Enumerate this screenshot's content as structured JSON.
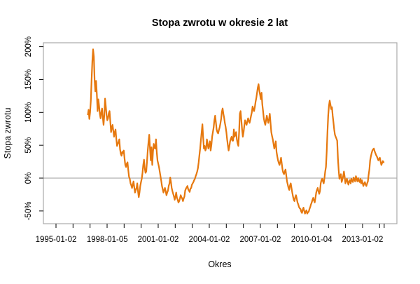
{
  "title": "Stopa zwrotu w okresie 2 lat",
  "chart_data": {
    "type": "line",
    "title": "Stopa zwrotu w okresie 2 lat",
    "xlabel": "Okres",
    "ylabel": "Stopa zwrotu",
    "legend": null,
    "grid": false,
    "series_color": "#E6780E",
    "box_color": "#A9A9A9",
    "zero_line_color": "#B0B0B0",
    "tick_color": "#000000",
    "ylim_pct": [
      -69,
      206
    ],
    "y_ticks": [
      {
        "label": "-50%",
        "value": -50
      },
      {
        "label": "0%",
        "value": 0
      },
      {
        "label": "50%",
        "value": 50
      },
      {
        "label": "100%",
        "value": 100
      },
      {
        "label": "150%",
        "value": 150
      },
      {
        "label": "200%",
        "value": 200
      }
    ],
    "x_major_ticks": [
      {
        "label": "1995-01-02",
        "year": 1995.0
      },
      {
        "label": "1998-01-05",
        "year": 1998.01
      },
      {
        "label": "2001-01-02",
        "year": 2001.0
      },
      {
        "label": "2004-01-02",
        "year": 2004.0
      },
      {
        "label": "2007-01-02",
        "year": 2007.0
      },
      {
        "label": "2010-01-04",
        "year": 2010.01
      },
      {
        "label": "2013-01-02",
        "year": 2013.0
      }
    ],
    "x_minor_tick_years": [
      1995,
      1996,
      1997,
      1998,
      1999,
      2000,
      2001,
      2002,
      2003,
      2004,
      2005,
      2006,
      2007,
      2008,
      2009,
      2010,
      2011,
      2012,
      2013,
      2014,
      2014.27
    ],
    "series": {
      "name": "stopa-zwrotu-2-lata",
      "x_start_year": 1996.87,
      "x_end_year": 2014.28,
      "unit": "percent",
      "values": [
        96,
        104,
        90,
        100,
        118,
        150,
        178,
        196,
        185,
        150,
        132,
        148,
        128,
        102,
        120,
        110,
        98,
        91,
        100,
        106,
        92,
        81,
        96,
        121,
        109,
        96,
        88,
        91,
        99,
        102,
        86,
        70,
        77,
        81,
        72,
        63,
        70,
        74,
        60,
        49,
        52,
        55,
        59,
        44,
        37,
        34,
        40,
        38,
        42,
        30,
        20,
        17,
        22,
        24,
        12,
        2,
        -1,
        -8,
        -11,
        -15,
        -10,
        -5,
        -14,
        -22,
        -18,
        -15,
        -8,
        -20,
        -29,
        -22,
        -12,
        -6,
        -1,
        8,
        20,
        28,
        15,
        8,
        10,
        25,
        42,
        55,
        66,
        45,
        27,
        47,
        20,
        40,
        52,
        46,
        45,
        59,
        40,
        27,
        22,
        17,
        10,
        3,
        -4,
        -12,
        -17,
        -22,
        -18,
        -15,
        -20,
        -26,
        -22,
        -19,
        -12,
        -8,
        1,
        -6,
        -15,
        -20,
        -24,
        -28,
        -33,
        -28,
        -22,
        -30,
        -33,
        -37,
        -35,
        -31,
        -26,
        -29,
        -31,
        -35,
        -31,
        -28,
        -19,
        -16,
        -14,
        -12,
        -17,
        -19,
        -21,
        -16,
        -15,
        -10,
        -8,
        -6,
        -3,
        -1,
        3,
        6,
        10,
        15,
        24,
        35,
        45,
        58,
        70,
        82,
        62,
        45,
        49,
        42,
        45,
        59,
        52,
        45,
        50,
        56,
        42,
        50,
        63,
        70,
        77,
        88,
        95,
        85,
        74,
        70,
        68,
        73,
        77,
        83,
        90,
        101,
        106,
        98,
        92,
        84,
        78,
        70,
        59,
        50,
        42,
        48,
        56,
        60,
        63,
        57,
        57,
        74,
        63,
        67,
        70,
        59,
        53,
        49,
        70,
        98,
        102,
        88,
        74,
        63,
        70,
        80,
        88,
        84,
        81,
        86,
        91,
        87,
        84,
        89,
        95,
        100,
        109,
        105,
        102,
        108,
        116,
        122,
        130,
        138,
        143,
        133,
        127,
        120,
        130,
        112,
        102,
        91,
        85,
        81,
        88,
        95,
        89,
        84,
        90,
        98,
        84,
        70,
        64,
        59,
        52,
        45,
        50,
        56,
        40,
        33,
        27,
        23,
        20,
        25,
        31,
        22,
        13,
        8,
        6,
        10,
        13,
        4,
        -5,
        -10,
        -15,
        -18,
        -11,
        -8,
        -15,
        -22,
        -28,
        -33,
        -35,
        -29,
        -26,
        -31,
        -37,
        -40,
        -44,
        -46,
        -47,
        -51,
        -53,
        -48,
        -45,
        -50,
        -54,
        -51,
        -49,
        -54,
        -52,
        -51,
        -47,
        -44,
        -40,
        -37,
        -33,
        -30,
        -34,
        -37,
        -30,
        -22,
        -18,
        -15,
        -20,
        -24,
        -20,
        -8,
        -3,
        -1,
        -5,
        -8,
        0,
        10,
        17,
        40,
        70,
        95,
        110,
        118,
        112,
        105,
        108,
        95,
        85,
        74,
        66,
        63,
        60,
        57,
        30,
        12,
        -1,
        3,
        6,
        -6,
        -2,
        3,
        10,
        2,
        -8,
        -4,
        -1,
        -6,
        -10,
        -5,
        -3,
        -8,
        -1,
        -4,
        -6,
        1,
        -2,
        -5,
        3,
        -1,
        -5,
        0,
        -4,
        -6,
        -1,
        -8,
        -3,
        -8,
        -12,
        -8,
        -6,
        -10,
        -12,
        -8,
        -5,
        5,
        13,
        27,
        33,
        38,
        42,
        44,
        45,
        41,
        38,
        35,
        33,
        30,
        27,
        29,
        31,
        25,
        20,
        23,
        26,
        24,
        24
      ]
    }
  }
}
